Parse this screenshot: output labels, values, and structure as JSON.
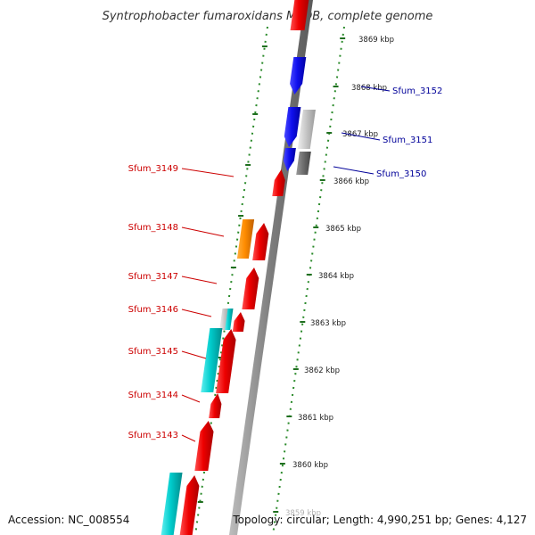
{
  "header": {
    "title": "Syntrophobacter fumaroxidans MPOB, complete genome"
  },
  "footer": {
    "accession": "Accession: NC_008554",
    "summary": "Topology: circular; Length: 4,990,251 bp; Genes: 4,127"
  },
  "colors": {
    "backbone": "#8c8c8c",
    "dots": "#2a8a2a",
    "ticks": "#1f6f1f",
    "left_label": "#cc0000",
    "right_label": "#000099",
    "red": "#ee0000",
    "blue": "#1010ee",
    "orange": "#ff8c00",
    "cyan": "#00cccc",
    "lightgray": "#c8c8c8",
    "darkgray": "#707070"
  },
  "scale_labels": [
    "3869 kbp",
    "3868 kbp",
    "3867 kbp",
    "3866 kbp",
    "3865 kbp",
    "3864 kbp",
    "3863 kbp",
    "3862 kbp",
    "3861 kbp",
    "3860 kbp",
    "3859 kbp"
  ],
  "left_genes": [
    {
      "name": "Sfum_3149",
      "color": "red"
    },
    {
      "name": "Sfum_3148",
      "color": "orange"
    },
    {
      "name": "Sfum_3147",
      "color": "red"
    },
    {
      "name": "Sfum_3146",
      "color": "cyan"
    },
    {
      "name": "Sfum_3145",
      "color": "cyan"
    },
    {
      "name": "Sfum_3144",
      "color": "red"
    },
    {
      "name": "Sfum_3143",
      "color": "red"
    }
  ],
  "right_genes": [
    {
      "name": "Sfum_3152",
      "color": "blue"
    },
    {
      "name": "Sfum_3151",
      "color": "blue"
    },
    {
      "name": "Sfum_3150",
      "color": "blue"
    }
  ]
}
